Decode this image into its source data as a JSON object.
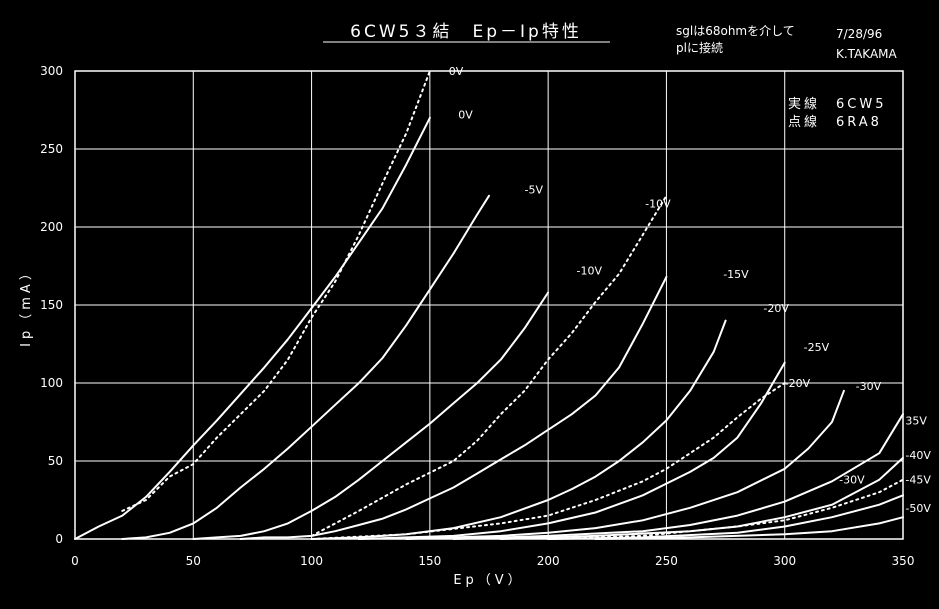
{
  "page": {
    "title": "6CW5３結　Ep－Ip特性",
    "note_line1": "sglは68ohmを介して",
    "note_line2": "plに接続",
    "date": "7/28/96",
    "author": "K.TAKAMA",
    "legend_line1": "実線　6CW5",
    "legend_line2": "点線　6RA8"
  },
  "colors": {
    "background": "#000000",
    "foreground": "#ffffff"
  },
  "chart_data": {
    "type": "line",
    "title": "6CW5３結　Ep－Ip特性",
    "xlabel": "Ep（V）",
    "ylabel": "Ip（mA）",
    "xlim": [
      0,
      350
    ],
    "ylim": [
      0,
      300
    ],
    "x_ticks": [
      0,
      50,
      100,
      150,
      200,
      250,
      300,
      350
    ],
    "y_ticks": [
      0,
      50,
      100,
      150,
      200,
      250,
      300
    ],
    "grid": true,
    "legend": "top-right",
    "series": [
      {
        "name": "0V",
        "style": "solid",
        "x": [
          0,
          10,
          20,
          30,
          40,
          50,
          60,
          70,
          80,
          90,
          100,
          110,
          120,
          130,
          140,
          150
        ],
        "y": [
          0,
          8,
          15,
          27,
          43,
          60,
          76,
          93,
          110,
          128,
          148,
          168,
          190,
          212,
          240,
          270
        ]
      },
      {
        "name": "-5V",
        "style": "solid",
        "x": [
          20,
          30,
          40,
          50,
          60,
          70,
          80,
          90,
          100,
          110,
          120,
          130,
          140,
          150,
          160,
          170,
          175
        ],
        "y": [
          0,
          1,
          4,
          10,
          20,
          33,
          45,
          58,
          72,
          86,
          100,
          116,
          137,
          160,
          183,
          208,
          220
        ]
      },
      {
        "name": "-10V",
        "style": "solid",
        "x": [
          50,
          60,
          70,
          80,
          90,
          100,
          110,
          120,
          130,
          140,
          150,
          160,
          170,
          180,
          190,
          200
        ],
        "y": [
          0,
          1,
          2,
          5,
          10,
          18,
          27,
          38,
          50,
          62,
          74,
          87,
          100,
          115,
          135,
          158
        ]
      },
      {
        "name": "-15V",
        "style": "solid",
        "x": [
          70,
          80,
          90,
          100,
          110,
          120,
          130,
          140,
          150,
          160,
          170,
          180,
          190,
          200,
          210,
          220,
          230,
          240,
          250
        ],
        "y": [
          0,
          1,
          1,
          2,
          5,
          9,
          13,
          19,
          26,
          33,
          42,
          51,
          60,
          70,
          80,
          92,
          110,
          138,
          168
        ]
      },
      {
        "name": "-20V",
        "style": "solid",
        "x": [
          100,
          120,
          140,
          160,
          180,
          200,
          210,
          220,
          230,
          240,
          250,
          260,
          270,
          275
        ],
        "y": [
          0,
          1,
          3,
          7,
          14,
          25,
          32,
          40,
          50,
          62,
          76,
          95,
          120,
          140
        ]
      },
      {
        "name": "-25V",
        "style": "solid",
        "x": [
          120,
          140,
          160,
          180,
          200,
          220,
          240,
          260,
          270,
          280,
          290,
          300
        ],
        "y": [
          0,
          1,
          2,
          5,
          10,
          17,
          28,
          43,
          52,
          65,
          87,
          113
        ]
      },
      {
        "name": "-30V",
        "style": "solid",
        "x": [
          140,
          160,
          180,
          200,
          220,
          240,
          260,
          280,
          300,
          310,
          320,
          325
        ],
        "y": [
          0,
          1,
          2,
          4,
          7,
          12,
          20,
          30,
          45,
          58,
          75,
          95
        ]
      },
      {
        "name": "35V",
        "style": "solid",
        "x": [
          160,
          200,
          240,
          260,
          280,
          300,
          320,
          340,
          350
        ],
        "y": [
          0,
          2,
          5,
          9,
          15,
          24,
          37,
          55,
          80
        ]
      },
      {
        "name": "-40V",
        "style": "solid",
        "x": [
          180,
          220,
          260,
          280,
          300,
          320,
          340,
          350
        ],
        "y": [
          0,
          2,
          5,
          8,
          14,
          22,
          38,
          52
        ]
      },
      {
        "name": "-45V",
        "style": "solid",
        "x": [
          200,
          240,
          280,
          300,
          320,
          340,
          350
        ],
        "y": [
          0,
          1,
          4,
          8,
          14,
          22,
          28
        ]
      },
      {
        "name": "-50V",
        "style": "solid",
        "x": [
          220,
          260,
          300,
          320,
          340,
          350
        ],
        "y": [
          0,
          1,
          3,
          5,
          10,
          14
        ]
      },
      {
        "name": "0V",
        "style": "dotted",
        "x": [
          20,
          30,
          40,
          50,
          60,
          70,
          80,
          90,
          100,
          110,
          120,
          130,
          140,
          150
        ],
        "y": [
          18,
          25,
          40,
          48,
          65,
          80,
          95,
          115,
          142,
          165,
          195,
          228,
          260,
          300
        ]
      },
      {
        "name": "-10V",
        "style": "dotted",
        "x": [
          100,
          120,
          140,
          160,
          170,
          180,
          190,
          200,
          210,
          220,
          230,
          240,
          250
        ],
        "y": [
          2,
          18,
          35,
          50,
          63,
          80,
          95,
          115,
          132,
          152,
          170,
          195,
          220
        ]
      },
      {
        "name": "-20V",
        "style": "dotted",
        "x": [
          100,
          140,
          180,
          200,
          220,
          240,
          250,
          260,
          270,
          280,
          290,
          300
        ],
        "y": [
          0,
          3,
          10,
          15,
          25,
          37,
          45,
          55,
          65,
          78,
          90,
          100
        ]
      },
      {
        "name": "-30V",
        "style": "dotted",
        "x": [
          200,
          240,
          260,
          280,
          300,
          320,
          340,
          350
        ],
        "y": [
          0,
          2,
          5,
          8,
          12,
          20,
          30,
          38
        ]
      }
    ],
    "curve_labels": [
      {
        "text": "0V",
        "x": 158,
        "y": 300
      },
      {
        "text": "0V",
        "x": 162,
        "y": 272
      },
      {
        "text": "-5V",
        "x": 190,
        "y": 224
      },
      {
        "text": "-10V",
        "x": 241,
        "y": 215
      },
      {
        "text": "-10V",
        "x": 212,
        "y": 172
      },
      {
        "text": "-15V",
        "x": 274,
        "y": 170
      },
      {
        "text": "-20V",
        "x": 291,
        "y": 148
      },
      {
        "text": "-25V",
        "x": 308,
        "y": 123
      },
      {
        "text": "-20V",
        "x": 300,
        "y": 100
      },
      {
        "text": "-30V",
        "x": 330,
        "y": 98
      },
      {
        "text": "35V",
        "x": 351,
        "y": 76
      },
      {
        "text": "-40V",
        "x": 351,
        "y": 54
      },
      {
        "text": "-30V",
        "x": 323,
        "y": 38
      },
      {
        "text": "-45V",
        "x": 351,
        "y": 38
      },
      {
        "text": "-50V",
        "x": 351,
        "y": 20
      }
    ]
  }
}
